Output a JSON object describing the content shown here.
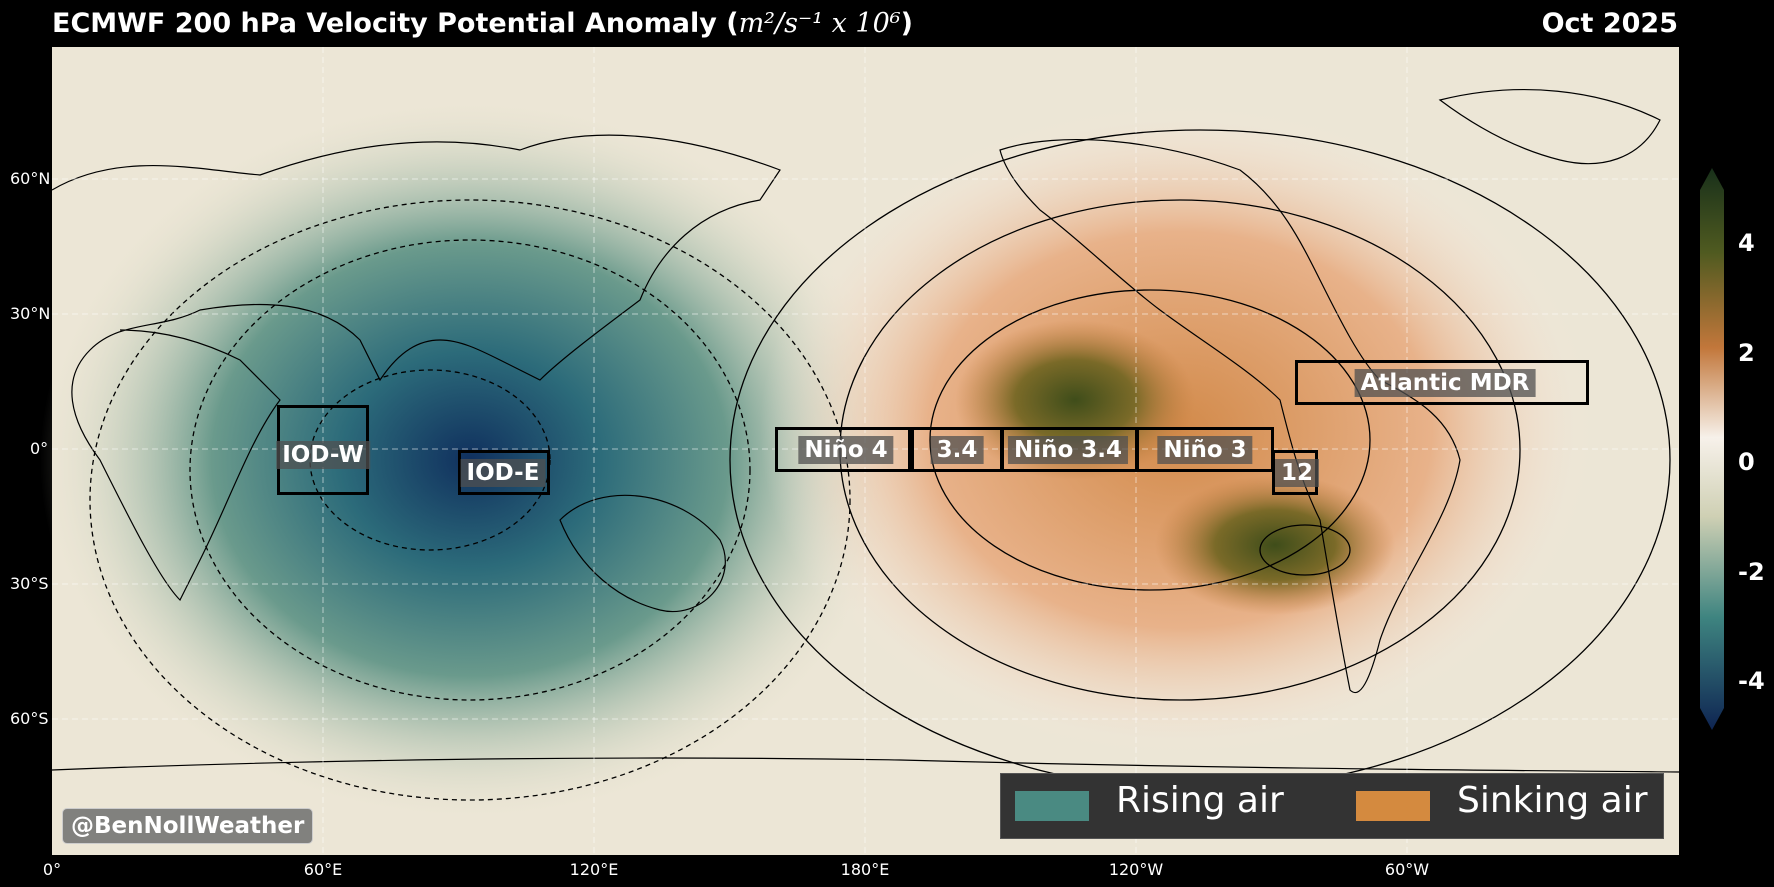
{
  "header": {
    "title_text": "ECMWF 200 hPa Velocity Potential Anomaly (",
    "title_units": "m²/s⁻¹ x 10⁶",
    "title_close": ")",
    "date": "Oct 2025"
  },
  "map": {
    "lat_labels": [
      "60°N",
      "30°N",
      "0°",
      "30°S",
      "60°S"
    ],
    "lon_labels": [
      "0°",
      "60°E",
      "120°E",
      "180°E",
      "120°W",
      "60°W"
    ],
    "projection": "equirectangular, centered near 180°",
    "gridlines": true
  },
  "regions": [
    {
      "label": "IOD-W"
    },
    {
      "label": "IOD-E"
    },
    {
      "label": "Niño 4"
    },
    {
      "label": "3.4"
    },
    {
      "label": "Niño 3.4"
    },
    {
      "label": "Niño 3"
    },
    {
      "label": "12"
    },
    {
      "label": "Atlantic MDR"
    }
  ],
  "colorbar": {
    "ticks": [
      "4",
      "2",
      "0",
      "-2",
      "-4"
    ],
    "colors": [
      "#14285a",
      "#2e6e7a",
      "#4a8e86",
      "#e9e3cf",
      "#f7f1ea",
      "#c87b3f",
      "#5c5a1e",
      "#1c3015"
    ]
  },
  "legend": {
    "rising_label": "Rising air",
    "rising_color": "#4a8a82",
    "sinking_label": "Sinking air",
    "sinking_color": "#d48a3f"
  },
  "credit": "@BenNollWeather"
}
